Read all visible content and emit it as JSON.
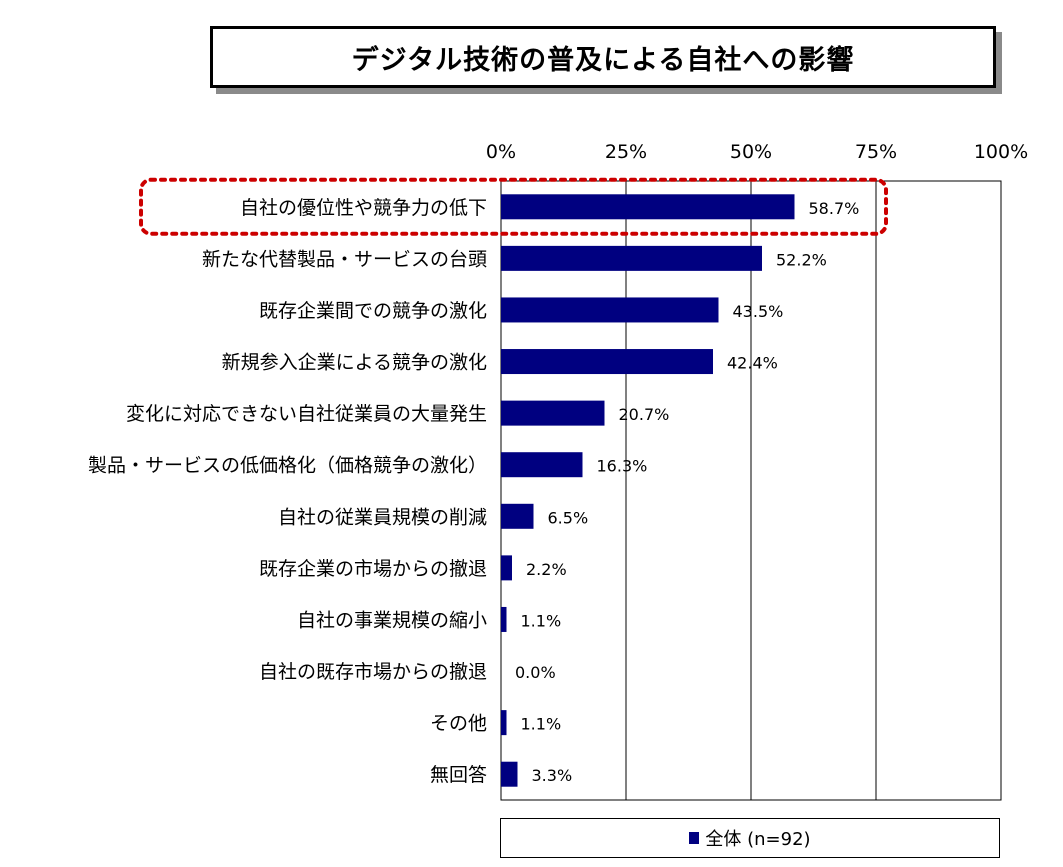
{
  "title": "デジタル技術の普及による自社への影響",
  "colors": {
    "bar": "#000080",
    "highlight": "#cc0000",
    "grid": "#000000"
  },
  "legend": {
    "label": "全体 (n=92)"
  },
  "chart_data": {
    "type": "bar",
    "orientation": "horizontal",
    "title": "デジタル技術の普及による自社への影響",
    "xlim": [
      0,
      100
    ],
    "x_ticks": [
      "0%",
      "25%",
      "50%",
      "75%",
      "100%"
    ],
    "x_tick_values": [
      0,
      25,
      50,
      75,
      100
    ],
    "grid": true,
    "legend_position": "bottom",
    "highlighted_category_index": 0,
    "categories": [
      "自社の優位性や競争力の低下",
      "新たな代替製品・サービスの台頭",
      "既存企業間での競争の激化",
      "新規参入企業による競争の激化",
      "変化に対応できない自社従業員の大量発生",
      "製品・サービスの低価格化（価格競争の激化）",
      "自社の従業員規模の削減",
      "既存企業の市場からの撤退",
      "自社の事業規模の縮小",
      "自社の既存市場からの撤退",
      "その他",
      "無回答"
    ],
    "series": [
      {
        "name": "全体 (n=92)",
        "values": [
          58.7,
          52.2,
          43.5,
          42.4,
          20.7,
          16.3,
          6.5,
          2.2,
          1.1,
          0.0,
          1.1,
          3.3
        ],
        "labels": [
          "58.7%",
          "52.2%",
          "43.5%",
          "42.4%",
          "20.7%",
          "16.3%",
          "6.5%",
          "2.2%",
          "1.1%",
          "0.0%",
          "1.1%",
          "3.3%"
        ]
      }
    ]
  }
}
